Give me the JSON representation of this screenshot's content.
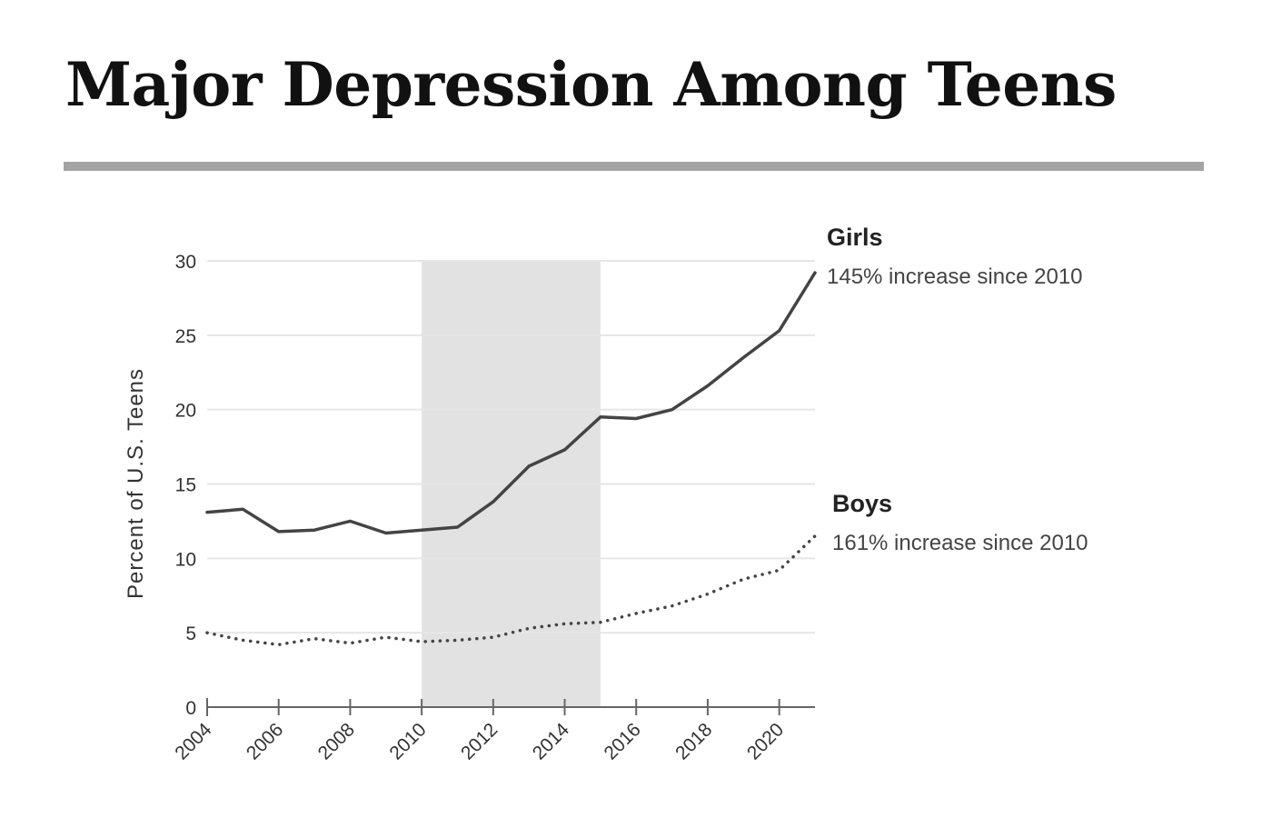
{
  "page": {
    "title": "Major Depression Among Teens"
  },
  "colors": {
    "rule": "#a4a4a4",
    "shade": "#e2e2e2",
    "grid": "#e6e6e6",
    "line": "#444444",
    "axis": "#666666"
  },
  "chart_data": {
    "type": "line",
    "title": "Major Depression Among Teens",
    "xlabel": "",
    "ylabel": "Percent of U.S. Teens",
    "xlim": [
      2004,
      2021
    ],
    "ylim": [
      0,
      30
    ],
    "x_ticks": [
      2004,
      2006,
      2008,
      2010,
      2012,
      2014,
      2016,
      2018,
      2020
    ],
    "y_ticks": [
      0,
      5,
      10,
      15,
      20,
      25,
      30
    ],
    "grid": "horizontal",
    "shaded_range": [
      2010,
      2015
    ],
    "x": [
      2004,
      2005,
      2006,
      2007,
      2008,
      2009,
      2010,
      2011,
      2012,
      2013,
      2014,
      2015,
      2016,
      2017,
      2018,
      2019,
      2020,
      2021
    ],
    "series": [
      {
        "name": "Girls",
        "annotation": "145% increase since 2010",
        "style": "solid",
        "values": [
          13.1,
          13.3,
          11.8,
          11.9,
          12.5,
          11.7,
          11.9,
          12.1,
          13.8,
          16.2,
          17.3,
          19.5,
          19.4,
          20.0,
          21.6,
          23.5,
          25.3,
          29.2
        ]
      },
      {
        "name": "Boys",
        "annotation": "161% increase since 2010",
        "style": "dotted",
        "values": [
          5.0,
          4.5,
          4.2,
          4.6,
          4.3,
          4.7,
          4.4,
          4.5,
          4.7,
          5.3,
          5.6,
          5.7,
          6.3,
          6.8,
          7.6,
          8.6,
          9.2,
          11.5
        ]
      }
    ]
  }
}
